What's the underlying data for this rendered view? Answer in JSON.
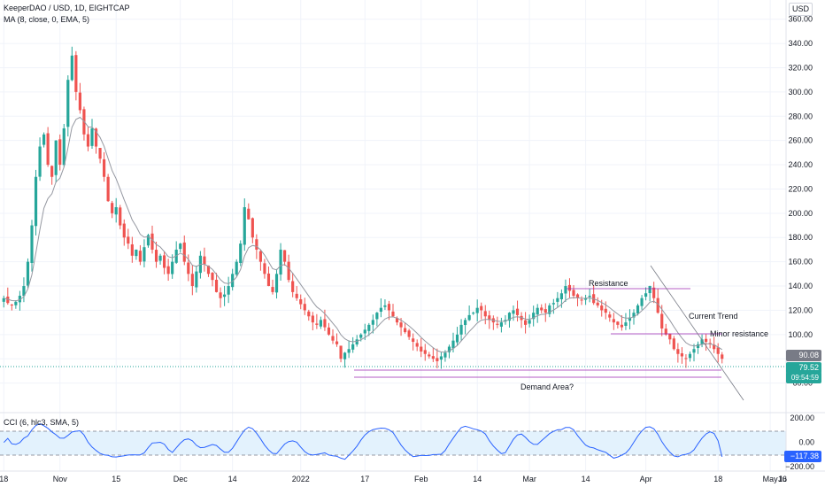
{
  "header": {
    "symbol_line": "KeeperDAO / USD, 1D, EIGHTCAP",
    "ma_line": "MA (8, close, 0, EMA, 5)",
    "cci_line": "CCI (6, hlc3, SMA, 5)",
    "currency": "USD"
  },
  "price_labels": {
    "prev_level": "90.08",
    "last_price": "79.52",
    "countdown": "09:54:59",
    "cci_value": "−117.38"
  },
  "annotations": {
    "resistance": "Resistance",
    "current_trend": "Current Trend",
    "minor_resistance": "Minor resistance",
    "demand_area": "Demand Area?"
  },
  "colors": {
    "up": "#26a69a",
    "down": "#ef5350",
    "ma": "#9598a1",
    "cci": "#2962ff",
    "cci_band": "#e3f2fd",
    "drawing": "#9c27b0",
    "last_price_bg": "#26a69a",
    "prev_level_bg": "#787b86"
  },
  "chart_data": [
    {
      "type": "candlestick",
      "title": "KeeperDAO / USD, 1D, EIGHTCAP",
      "y_axis": {
        "unit": "USD",
        "ylim": [
          40,
          370
        ],
        "ticks": [
          60,
          80,
          100,
          120,
          140,
          160,
          180,
          200,
          220,
          240,
          260,
          280,
          300,
          320,
          340,
          360
        ],
        "tick_labels": [
          "60.00",
          "80.00",
          "100.00",
          "120.00",
          "140.00",
          "160.00",
          "180.00",
          "200.00",
          "220.00",
          "240.00",
          "260.00",
          "280.00",
          "300.00",
          "320.00",
          "340.00",
          "360.00"
        ]
      },
      "x_axis": {
        "labels": [
          "18",
          "Nov",
          "15",
          "Dec",
          "14",
          "2022",
          "17",
          "Feb",
          "14",
          "Mar",
          "14",
          "Apr",
          "18",
          "May",
          "16",
          "Ju"
        ],
        "label_day_index": [
          0,
          14,
          28,
          44,
          57,
          74,
          90,
          104,
          118,
          131,
          145,
          160,
          178,
          191,
          207,
          222
        ]
      },
      "series": {
        "close": [
          130,
          126,
          124,
          127,
          132,
          140,
          160,
          190,
          230,
          255,
          265,
          240,
          230,
          260,
          240,
          270,
          310,
          330,
          300,
          285,
          265,
          255,
          270,
          255,
          245,
          230,
          210,
          200,
          205,
          190,
          180,
          175,
          165,
          170,
          160,
          172,
          182,
          170,
          160,
          165,
          155,
          150,
          160,
          170,
          175,
          160,
          150,
          140,
          152,
          165,
          158,
          150,
          145,
          135,
          130,
          133,
          140,
          150,
          160,
          175,
          205,
          195,
          180,
          170,
          160,
          150,
          140,
          135,
          150,
          170,
          160,
          145,
          135,
          130,
          125,
          120,
          115,
          110,
          108,
          112,
          106,
          100,
          95,
          92,
          80,
          85,
          88,
          92,
          96,
          100,
          104,
          108,
          112,
          118,
          122,
          124,
          120,
          115,
          110,
          106,
          102,
          98,
          94,
          90,
          86,
          84,
          82,
          80,
          78,
          82,
          85,
          90,
          95,
          100,
          108,
          112,
          116,
          118,
          122,
          120,
          115,
          112,
          110,
          108,
          110,
          112,
          118,
          120,
          116,
          112,
          108,
          112,
          118,
          122,
          120,
          118,
          124,
          126,
          130,
          134,
          140,
          136,
          132,
          130,
          128,
          130,
          132,
          126,
          124,
          120,
          118,
          114,
          110,
          108,
          106,
          110,
          114,
          118,
          124,
          130,
          134,
          140,
          130,
          118,
          105,
          100,
          96,
          88,
          84,
          82,
          80,
          84,
          88,
          92,
          96,
          94,
          92,
          88,
          84,
          80
        ],
        "ma_8_ema": "rendered as line computed from close"
      }
    },
    {
      "type": "line",
      "title": "CCI (6, hlc3, SMA, 5)",
      "y_axis": {
        "ylim": [
          -220,
          230
        ],
        "ticks": [
          200,
          0,
          -200
        ],
        "tick_labels": [
          "200.00",
          "0.00",
          "−200.00"
        ],
        "band": [
          100,
          -100
        ]
      },
      "last_value": -117.38
    }
  ]
}
